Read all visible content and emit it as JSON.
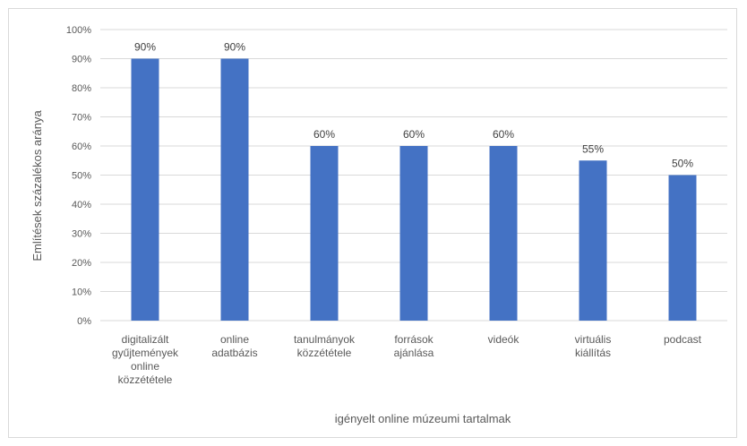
{
  "chart_data": {
    "type": "bar",
    "categories": [
      [
        "digitalizált",
        "gyűjtemények",
        "online",
        "közzététele"
      ],
      [
        "online",
        "adatbázis"
      ],
      [
        "tanulmányok",
        "közzététele"
      ],
      [
        "források",
        "ajánlása"
      ],
      [
        "videók"
      ],
      [
        "virtuális",
        "kiállítás"
      ],
      [
        "podcast"
      ]
    ],
    "values": [
      90,
      90,
      60,
      60,
      60,
      55,
      50
    ],
    "data_labels": [
      "90%",
      "90%",
      "60%",
      "60%",
      "60%",
      "55%",
      "50%"
    ],
    "y_ticks": [
      "0%",
      "10%",
      "20%",
      "30%",
      "40%",
      "50%",
      "60%",
      "70%",
      "80%",
      "90%",
      "100%"
    ],
    "ylim": [
      0,
      100
    ],
    "xlabel": "igényelt online múzeumi tartalmak",
    "ylabel": "Említések százalékos aránya",
    "bar_color": "#4472c4",
    "grid": true,
    "grid_color": "#d9d9d9"
  }
}
